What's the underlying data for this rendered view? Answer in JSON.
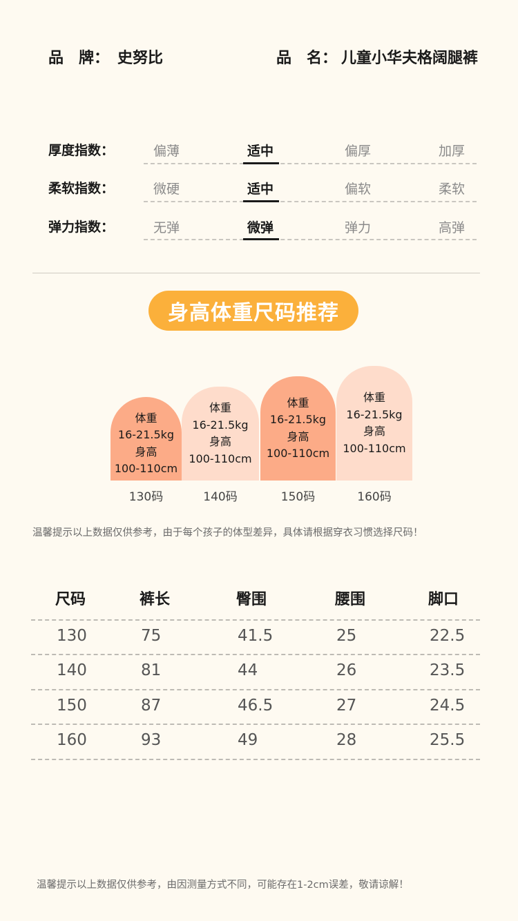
{
  "header": {
    "brand_label": "品　牌：",
    "brand_value": "史努比",
    "name_label": "品　名：",
    "name_value": "儿童小华夫格阔腿裤"
  },
  "indices": [
    {
      "label": "厚度指数：",
      "options": [
        "偏薄",
        "适中",
        "偏厚",
        "加厚"
      ],
      "selected": 1
    },
    {
      "label": "柔软指数：",
      "options": [
        "微硬",
        "适中",
        "偏软",
        "柔软"
      ],
      "selected": 1
    },
    {
      "label": "弹力指数：",
      "options": [
        "无弹",
        "微弹",
        "弹力",
        "高弹"
      ],
      "selected": 1
    }
  ],
  "recommend": {
    "title": "身高体重尺码推荐",
    "cards": [
      {
        "weight_label": "体重",
        "weight": "16-21.5kg",
        "height_label": "身高",
        "height": "100-110cm",
        "size": "130码"
      },
      {
        "weight_label": "体重",
        "weight": "16-21.5kg",
        "height_label": "身高",
        "height": "100-110cm",
        "size": "140码"
      },
      {
        "weight_label": "体重",
        "weight": "16-21.5kg",
        "height_label": "身高",
        "height": "100-110cm",
        "size": "150码"
      },
      {
        "weight_label": "体重",
        "weight": "16-21.5kg",
        "height_label": "身高",
        "height": "100-110cm",
        "size": "160码"
      }
    ],
    "note": "温馨提示以上数据仅供参考，由于每个孩子的体型差异，具体请根据穿衣习惯选择尺码！"
  },
  "colors": {
    "badge": "#fbb03b",
    "card_dark": "#fcab87",
    "card_light": "#fedccb",
    "background": "#fefaf1"
  },
  "size_table": {
    "headers": [
      "尺码",
      "裤长",
      "臀围",
      "腰围",
      "脚口"
    ],
    "rows": [
      [
        "130",
        "75",
        "41.5",
        "25",
        "22.5"
      ],
      [
        "140",
        "81",
        "44",
        "26",
        "23.5"
      ],
      [
        "150",
        "87",
        "46.5",
        "27",
        "24.5"
      ],
      [
        "160",
        "93",
        "49",
        "28",
        "25.5"
      ]
    ]
  },
  "footer_note": "温馨提示以上数据仅供参考，由因测量方式不同，可能存在1-2cm误差，敬请谅解！"
}
